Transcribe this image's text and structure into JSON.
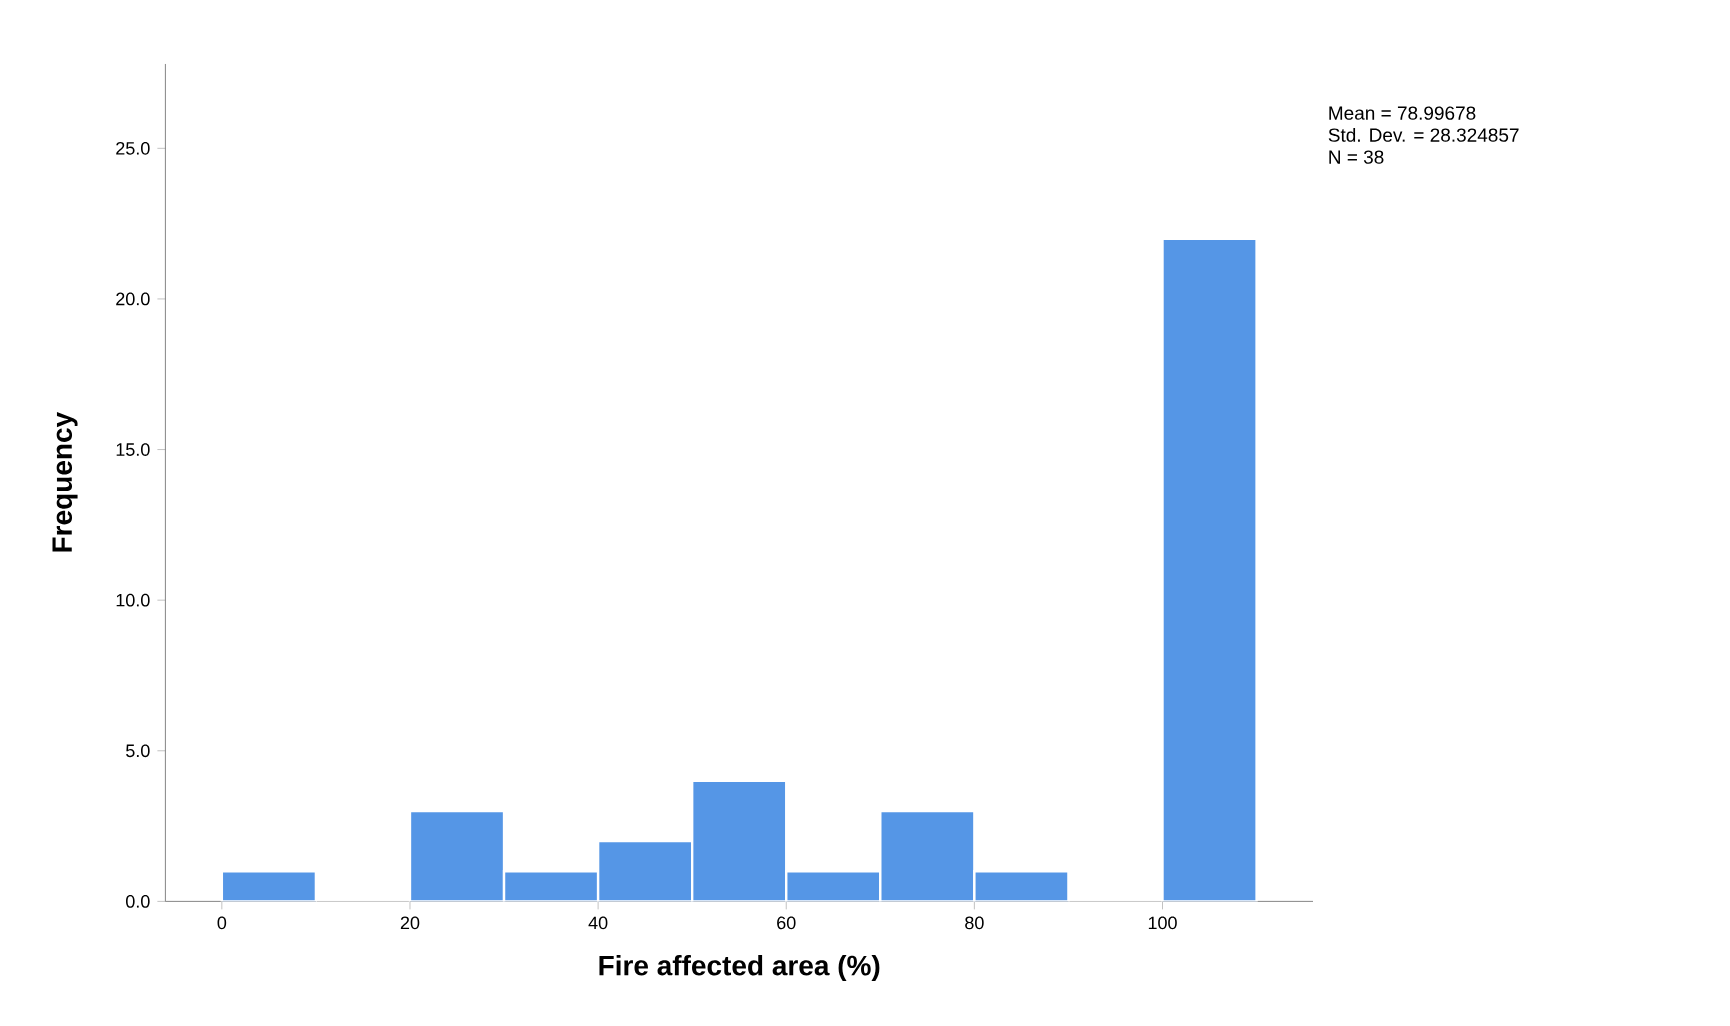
{
  "chart_data": {
    "type": "histogram",
    "xlabel": "Fire affected area (%)",
    "ylabel": "Frequency",
    "bins": [
      0,
      10,
      20,
      30,
      40,
      50,
      60,
      70,
      80,
      90,
      100,
      110
    ],
    "values": [
      1,
      0,
      3,
      1,
      2,
      4,
      1,
      3,
      1,
      0,
      22
    ],
    "color": "#5596e6",
    "xlim": [
      -6,
      116
    ],
    "ylim": [
      0,
      27.8
    ],
    "xticks": [
      0,
      20,
      40,
      60,
      80,
      100
    ],
    "yticks": [
      {
        "value": 0,
        "label": "0.0"
      },
      {
        "value": 5,
        "label": "5.0"
      },
      {
        "value": 10,
        "label": "10.0"
      },
      {
        "value": 15,
        "label": "15.0"
      },
      {
        "value": 20,
        "label": "20.0"
      },
      {
        "value": 25,
        "label": "25.0"
      }
    ],
    "annotations": [
      "Mean = 78.99678",
      "Std. Dev. = 28.324857",
      "N = 38"
    ]
  }
}
